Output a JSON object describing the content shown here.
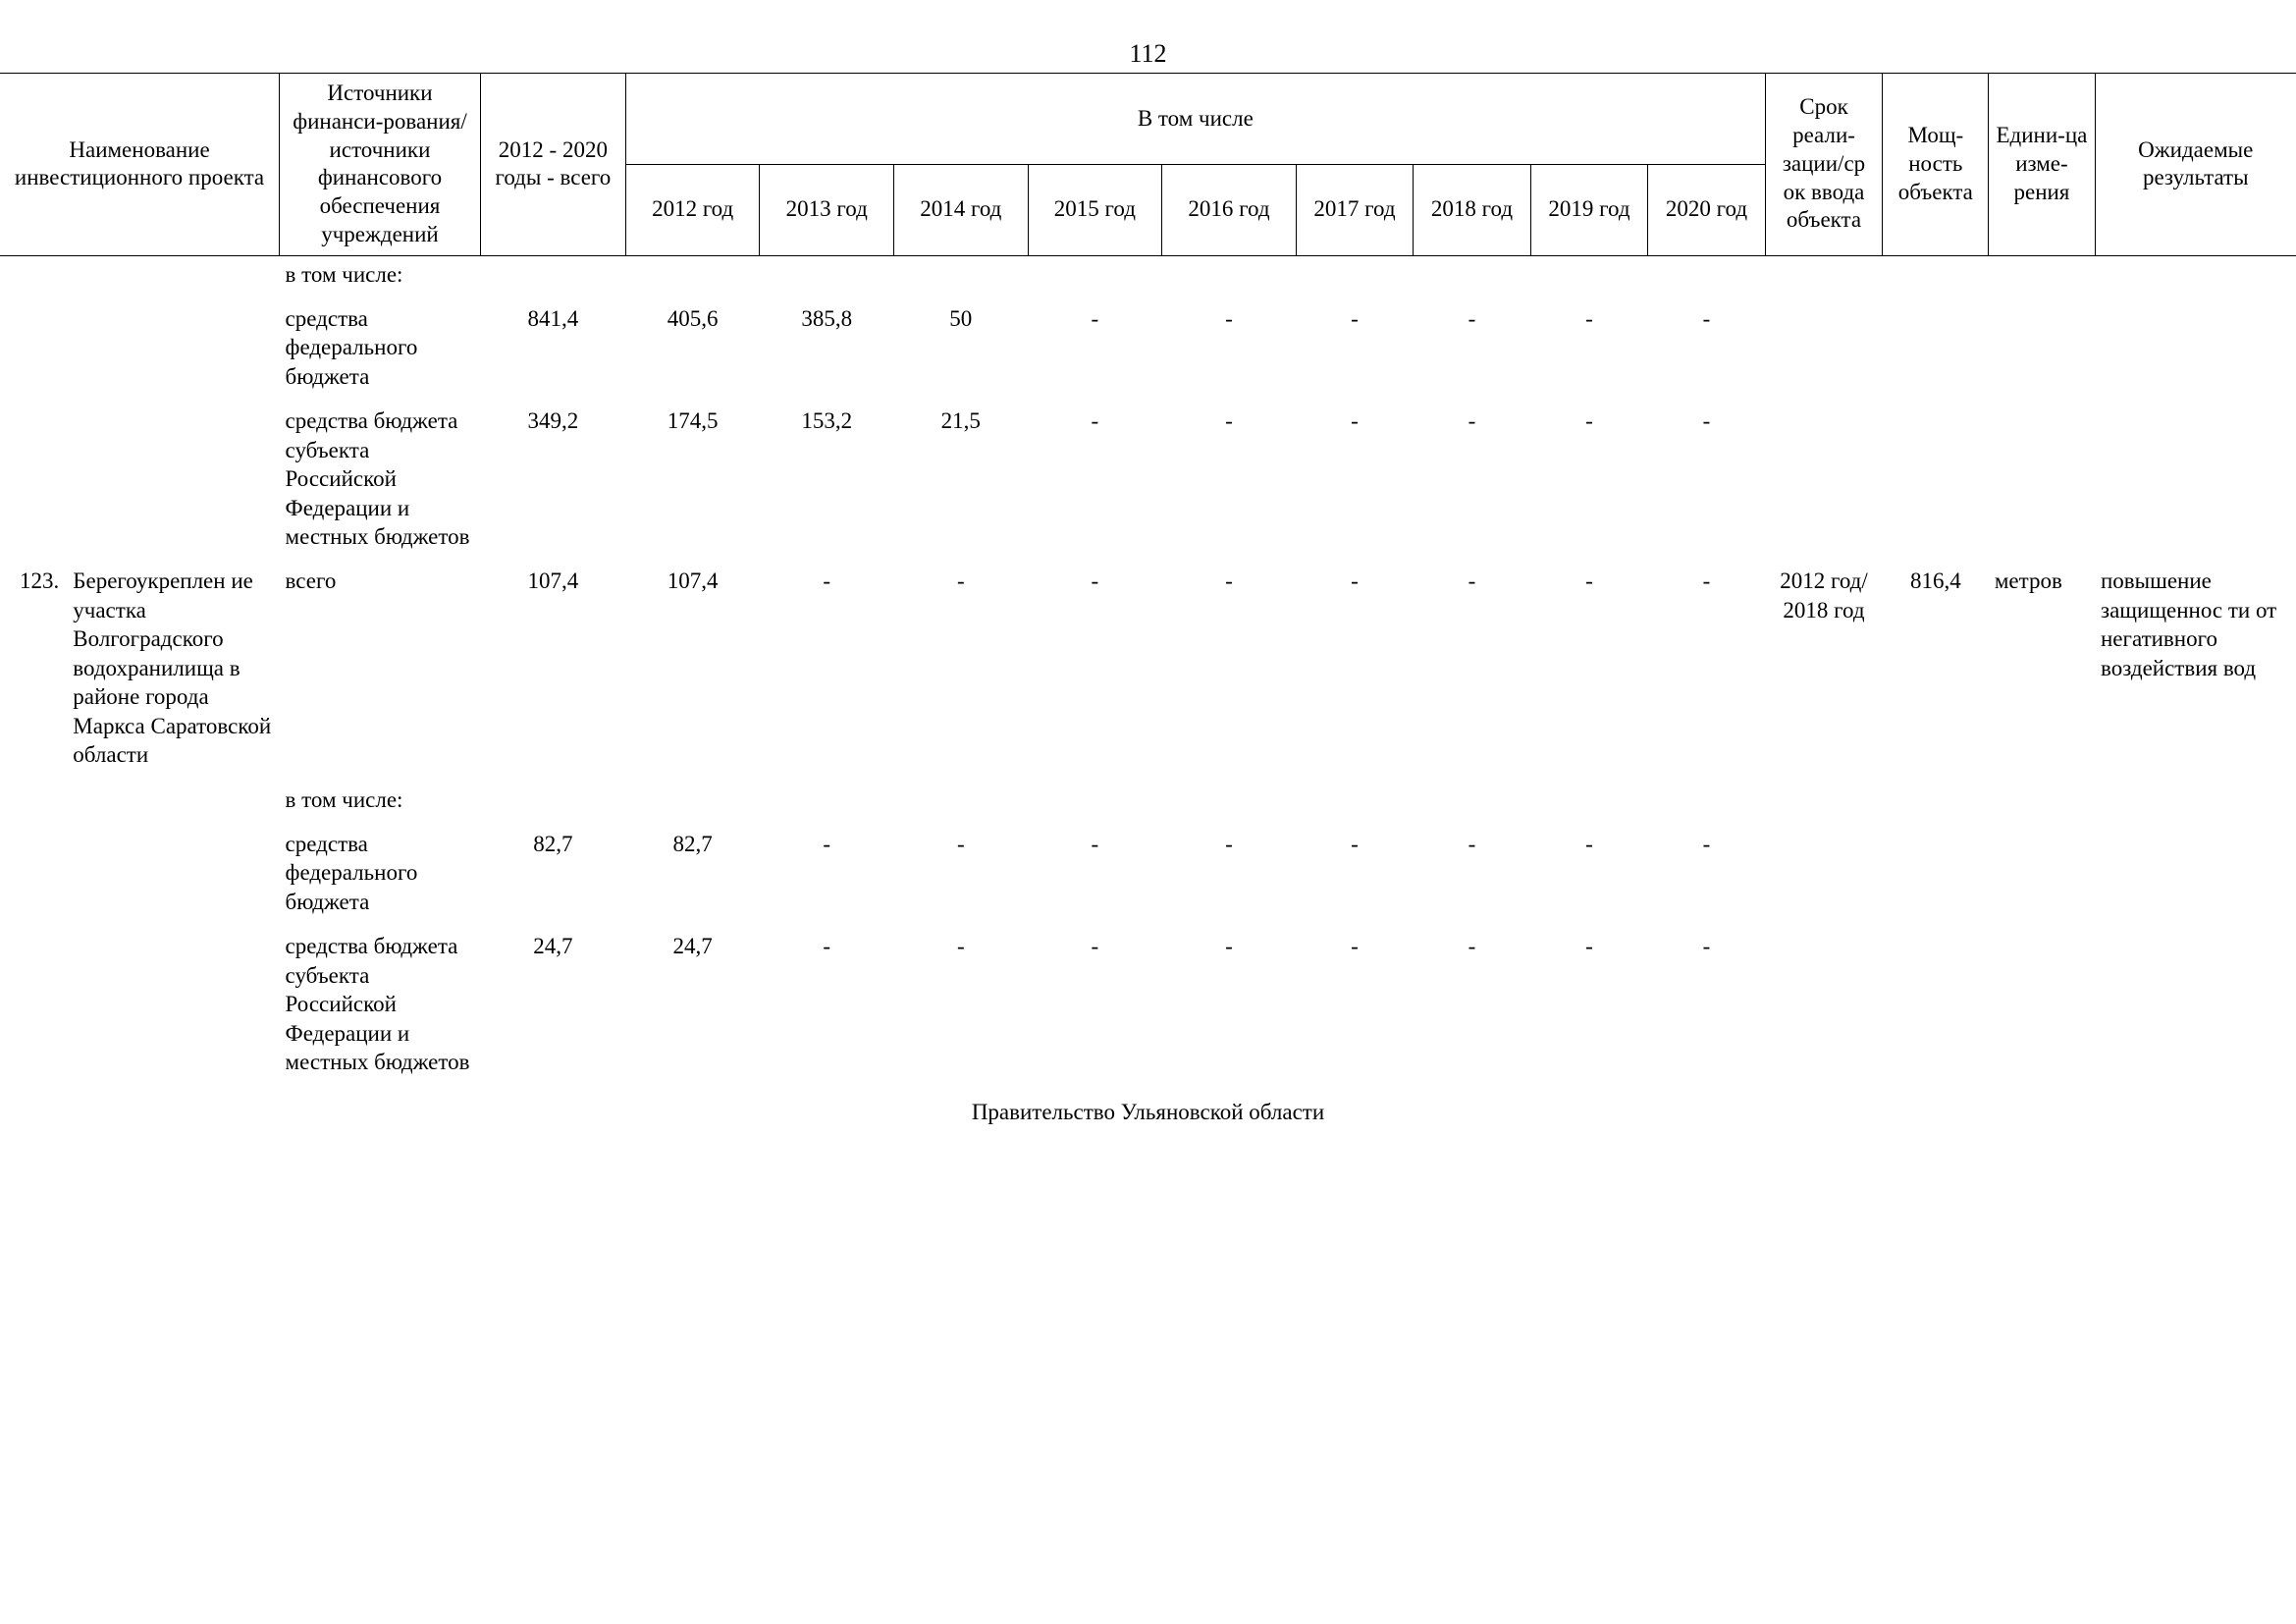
{
  "page_number": "112",
  "header": {
    "project_name": "Наименование инвестиционного проекта",
    "sources": "Источники финанси-рования/источники финансового обеспечения учреждений",
    "total": "2012 - 2020 годы - всего",
    "including": "В том числе",
    "years": [
      "2012 год",
      "2013 год",
      "2014 год",
      "2015 год",
      "2016 год",
      "2017 год",
      "2018 год",
      "2019 год",
      "2020 год"
    ],
    "srok": "Срок реали-зации/ср ок ввода объекта",
    "power": "Мощ-ность объекта",
    "unit": "Едини-ца изме-рения",
    "result": "Ожидаемые результаты"
  },
  "rows": [
    {
      "src": "в том числе:",
      "vals": [
        "",
        "",
        "",
        "",
        "",
        "",
        "",
        "",
        "",
        ""
      ]
    },
    {
      "src": "средства федерального бюджета",
      "vals": [
        "841,4",
        "405,6",
        "385,8",
        "50",
        "-",
        "-",
        "-",
        "-",
        "-",
        "-"
      ]
    },
    {
      "src": "средства бюджета субъекта Российской Федерации и местных бюджетов",
      "vals": [
        "349,2",
        "174,5",
        "153,2",
        "21,5",
        "-",
        "-",
        "-",
        "-",
        "-",
        "-"
      ]
    }
  ],
  "project": {
    "idx": "123.",
    "name": "Берегоукреплен ие участка Волгоградского водохранилища в районе города Маркса Саратовской области",
    "src": "всего",
    "vals": [
      "107,4",
      "107,4",
      "-",
      "-",
      "-",
      "-",
      "-",
      "-",
      "-",
      "-"
    ],
    "srok": "2012 год/ 2018 год",
    "power": "816,4",
    "unit": "метров",
    "result": "повышение защищеннос ти от негативного воздействия вод"
  },
  "rows2": [
    {
      "src": "в том числе:",
      "vals": [
        "",
        "",
        "",
        "",
        "",
        "",
        "",
        "",
        "",
        ""
      ]
    },
    {
      "src": "средства федерального бюджета",
      "vals": [
        "82,7",
        "82,7",
        "-",
        "-",
        "-",
        "-",
        "-",
        "-",
        "-",
        "-"
      ]
    },
    {
      "src": "средства бюджета субъекта Российской Федерации и местных бюджетов",
      "vals": [
        "24,7",
        "24,7",
        "-",
        "-",
        "-",
        "-",
        "-",
        "-",
        "-",
        "-"
      ]
    }
  ],
  "section": "Правительство Ульяновской области"
}
